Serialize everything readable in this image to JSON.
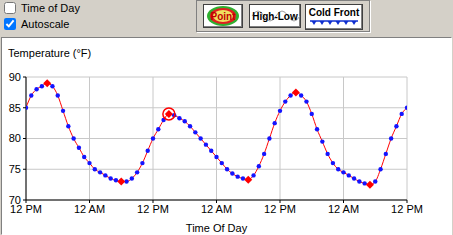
{
  "controls": {
    "checkboxes": [
      {
        "label": "Time of Day",
        "checked": false
      },
      {
        "label": "Autoscale",
        "checked": true
      }
    ],
    "buttons": [
      "Point",
      "High-Low",
      "Cold Front"
    ]
  },
  "chart_data": {
    "type": "line",
    "title": "Temperature (°F)",
    "x_label": "Time Of Day",
    "x": [
      0,
      1,
      2,
      3,
      4,
      5,
      6,
      7,
      8,
      9,
      10,
      11,
      12,
      13,
      14,
      15,
      16,
      17,
      18,
      19,
      20,
      21,
      22,
      23,
      24,
      25,
      26,
      27,
      28,
      29,
      30,
      31,
      32,
      33,
      34,
      35,
      36,
      37,
      38,
      39,
      40,
      41,
      42,
      43,
      44,
      45,
      46,
      47,
      48,
      49,
      50,
      51,
      52,
      53,
      54,
      55,
      56,
      57,
      58,
      59,
      60,
      61,
      62,
      63,
      64,
      65,
      66,
      67,
      68,
      69,
      70,
      71,
      72
    ],
    "xlim": [
      0,
      72
    ],
    "xticks": [
      {
        "value": 0,
        "label": "12 PM"
      },
      {
        "value": 12,
        "label": "12 AM"
      },
      {
        "value": 24,
        "label": "12 PM"
      },
      {
        "value": 36,
        "label": "12 AM"
      },
      {
        "value": 48,
        "label": "12 PM"
      },
      {
        "value": 60,
        "label": "12 AM"
      },
      {
        "value": 72,
        "label": "12 PM"
      }
    ],
    "ylim": [
      70,
      90
    ],
    "yticks": [
      70,
      75,
      80,
      85,
      90
    ],
    "grid": true,
    "series": [
      {
        "color": "#ff0000",
        "marker": "circle",
        "values": [
          85,
          87,
          88,
          88.5,
          89,
          88.5,
          87,
          84.5,
          82,
          80,
          78.5,
          77,
          76,
          75,
          74.5,
          74,
          73.5,
          73.2,
          73,
          73,
          73.5,
          74.5,
          76,
          78,
          80,
          81.5,
          83,
          84,
          83.8,
          83.3,
          82.8,
          82,
          81,
          80,
          79,
          78,
          77,
          76,
          75,
          74.3,
          73.8,
          73.5,
          73.3,
          74,
          75.5,
          77.5,
          80,
          82.5,
          84.5,
          86,
          87,
          87.5,
          87,
          86,
          84,
          81.5,
          79.5,
          77.5,
          76,
          75,
          74.5,
          74,
          73.5,
          73,
          72.7,
          72.5,
          73,
          75,
          77.5,
          80,
          82,
          84,
          85
        ]
      },
      {
        "type": "scatter",
        "color": "#ff0000",
        "marker": "diamond",
        "x": [
          4,
          18,
          42,
          51,
          65
        ],
        "values": [
          89,
          73,
          73.3,
          87.5,
          72.5
        ]
      },
      {
        "type": "scatter",
        "color": "#ff0000",
        "marker": "ringed_diamond",
        "x": [
          27
        ],
        "values": [
          84
        ]
      }
    ]
  }
}
